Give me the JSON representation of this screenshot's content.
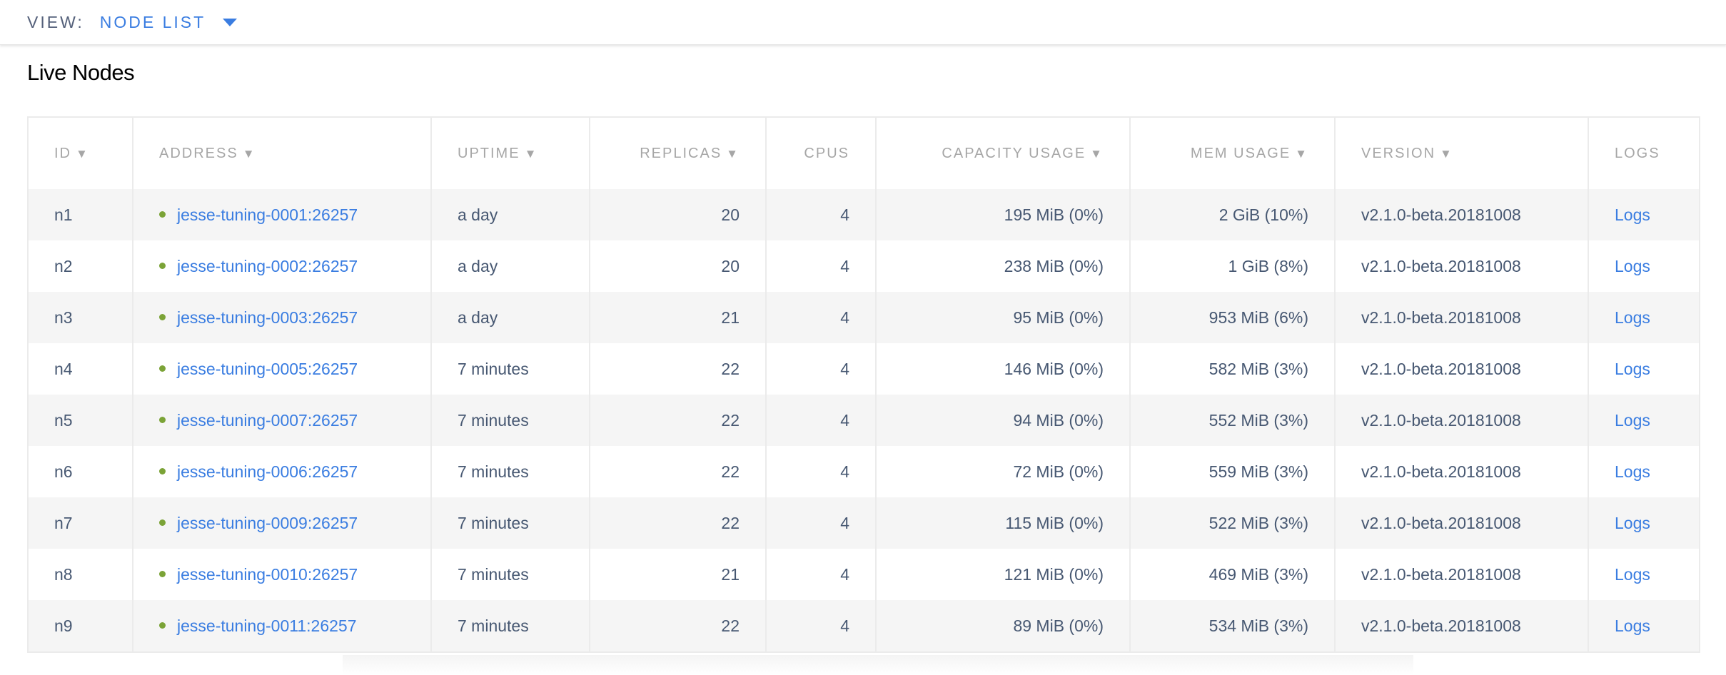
{
  "view": {
    "label": "VIEW:",
    "value": "NODE LIST"
  },
  "title": "Live Nodes",
  "colors": {
    "link": "#3a7de1",
    "live_dot": "#7ba337",
    "text": "#475872",
    "header": "#a6a6a6"
  },
  "columns": [
    {
      "label": "ID",
      "sortable": true
    },
    {
      "label": "ADDRESS",
      "sortable": true
    },
    {
      "label": "UPTIME",
      "sortable": true
    },
    {
      "label": "REPLICAS",
      "sortable": true
    },
    {
      "label": "CPUS",
      "sortable": false
    },
    {
      "label": "CAPACITY USAGE",
      "sortable": true
    },
    {
      "label": "MEM USAGE",
      "sortable": true
    },
    {
      "label": "VERSION",
      "sortable": true
    },
    {
      "label": "LOGS",
      "sortable": false
    }
  ],
  "sort_icon": "▼",
  "rows": [
    {
      "id": "n1",
      "address": "jesse-tuning-0001:26257",
      "uptime": "a day",
      "replicas": "20",
      "cpus": "4",
      "capacity": "195 MiB (0%)",
      "mem": "2 GiB (10%)",
      "version": "v2.1.0-beta.20181008",
      "logs": "Logs"
    },
    {
      "id": "n2",
      "address": "jesse-tuning-0002:26257",
      "uptime": "a day",
      "replicas": "20",
      "cpus": "4",
      "capacity": "238 MiB (0%)",
      "mem": "1 GiB (8%)",
      "version": "v2.1.0-beta.20181008",
      "logs": "Logs"
    },
    {
      "id": "n3",
      "address": "jesse-tuning-0003:26257",
      "uptime": "a day",
      "replicas": "21",
      "cpus": "4",
      "capacity": "95 MiB (0%)",
      "mem": "953 MiB (6%)",
      "version": "v2.1.0-beta.20181008",
      "logs": "Logs"
    },
    {
      "id": "n4",
      "address": "jesse-tuning-0005:26257",
      "uptime": "7 minutes",
      "replicas": "22",
      "cpus": "4",
      "capacity": "146 MiB (0%)",
      "mem": "582 MiB (3%)",
      "version": "v2.1.0-beta.20181008",
      "logs": "Logs"
    },
    {
      "id": "n5",
      "address": "jesse-tuning-0007:26257",
      "uptime": "7 minutes",
      "replicas": "22",
      "cpus": "4",
      "capacity": "94 MiB (0%)",
      "mem": "552 MiB (3%)",
      "version": "v2.1.0-beta.20181008",
      "logs": "Logs"
    },
    {
      "id": "n6",
      "address": "jesse-tuning-0006:26257",
      "uptime": "7 minutes",
      "replicas": "22",
      "cpus": "4",
      "capacity": "72 MiB (0%)",
      "mem": "559 MiB (3%)",
      "version": "v2.1.0-beta.20181008",
      "logs": "Logs"
    },
    {
      "id": "n7",
      "address": "jesse-tuning-0009:26257",
      "uptime": "7 minutes",
      "replicas": "22",
      "cpus": "4",
      "capacity": "115 MiB (0%)",
      "mem": "522 MiB (3%)",
      "version": "v2.1.0-beta.20181008",
      "logs": "Logs"
    },
    {
      "id": "n8",
      "address": "jesse-tuning-0010:26257",
      "uptime": "7 minutes",
      "replicas": "21",
      "cpus": "4",
      "capacity": "121 MiB (0%)",
      "mem": "469 MiB (3%)",
      "version": "v2.1.0-beta.20181008",
      "logs": "Logs"
    },
    {
      "id": "n9",
      "address": "jesse-tuning-0011:26257",
      "uptime": "7 minutes",
      "replicas": "22",
      "cpus": "4",
      "capacity": "89 MiB (0%)",
      "mem": "534 MiB (3%)",
      "version": "v2.1.0-beta.20181008",
      "logs": "Logs"
    }
  ]
}
